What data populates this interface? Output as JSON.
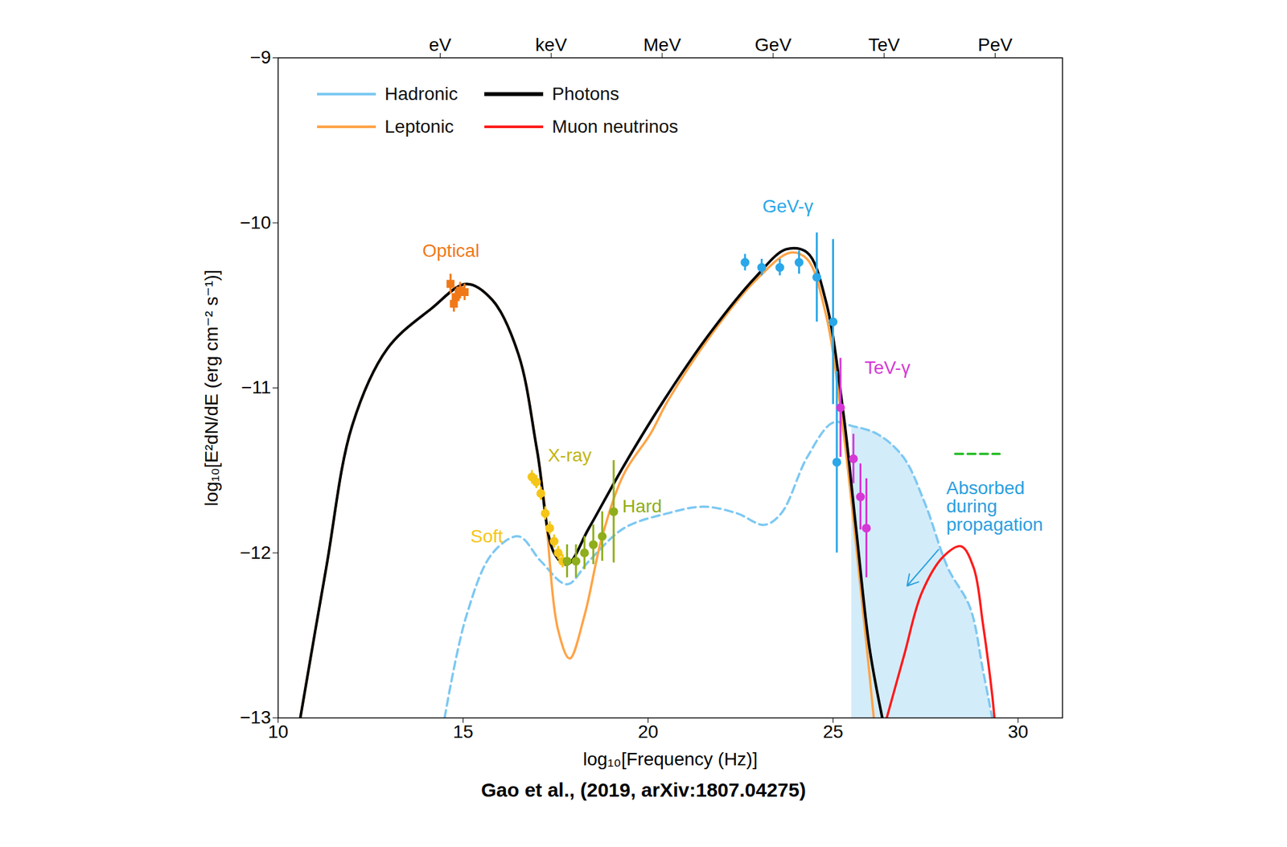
{
  "chart_data": {
    "type": "line",
    "x_label": "log₁₀[Frequency (Hz)]",
    "y_label": "log₁₀[E²dN/dE (erg cm⁻² s⁻¹)]",
    "caption": "Gao et al., (2019, arXiv:1807.04275)",
    "xlim": [
      10,
      31.2
    ],
    "ylim": [
      -13,
      -9
    ],
    "xticks": [
      10,
      15,
      20,
      25,
      30
    ],
    "yticks": [
      -13,
      -12,
      -11,
      -10,
      -9
    ],
    "x2ticks": [
      {
        "value": 14.38,
        "label": "eV"
      },
      {
        "value": 17.38,
        "label": "keV"
      },
      {
        "value": 20.38,
        "label": "MeV"
      },
      {
        "value": 23.38,
        "label": "GeV"
      },
      {
        "value": 26.38,
        "label": "TeV"
      },
      {
        "value": 29.38,
        "label": "PeV"
      }
    ],
    "grid": false,
    "legend": "top-left",
    "series": [
      {
        "name": "Absorbed during propagation",
        "type": "area",
        "color": "#d3ecfa",
        "x": [
          25.5,
          26.2,
          26.9,
          27.5,
          28.1,
          28.7,
          29.05,
          29.3
        ],
        "values": [
          -11.23,
          -11.28,
          -11.42,
          -11.71,
          -12.09,
          -12.33,
          -12.71,
          -13
        ],
        "label_at": [
          28.06,
          -11.72
        ],
        "label_color": "#2aa0e0",
        "arrow": [
          27.85,
          -11.98,
          27.0,
          -12.2
        ]
      },
      {
        "name": "Hadronic",
        "type": "line",
        "color": "#7cc8f2",
        "line_style": "dashed",
        "x": [
          14.5,
          15.09,
          15.8,
          16.5,
          17.1,
          17.81,
          18.4,
          19.35,
          20.53,
          21.5,
          22.4,
          23.14,
          23.6,
          24.3,
          25.0,
          25.5,
          26.2,
          26.9,
          27.5,
          28.1,
          28.7,
          29.05,
          29.3
        ],
        "values": [
          -13,
          -12.38,
          -12.0,
          -11.9,
          -12.05,
          -12.19,
          -12.05,
          -11.85,
          -11.76,
          -11.72,
          -11.76,
          -11.83,
          -11.76,
          -11.42,
          -11.21,
          -11.23,
          -11.28,
          -11.42,
          -11.71,
          -12.09,
          -12.33,
          -12.71,
          -13
        ]
      },
      {
        "name": "Leptonic",
        "type": "line",
        "color": "#ffa345",
        "line_style": "solid",
        "x": [
          10.6,
          11.3,
          12.0,
          12.96,
          14.14,
          15.09,
          15.8,
          16.5,
          17.0,
          17.2,
          17.57,
          17.88,
          18.28,
          18.76,
          19.35,
          20.06,
          20.53,
          21.7,
          22.9,
          23.85,
          24.3,
          24.8,
          25.27,
          25.62,
          25.9,
          26.1
        ],
        "values": [
          -13,
          -12.09,
          -11.23,
          -10.76,
          -10.52,
          -10.37,
          -10.47,
          -10.8,
          -11.38,
          -11.7,
          -12.47,
          -12.64,
          -12.38,
          -11.9,
          -11.52,
          -11.28,
          -11.08,
          -10.68,
          -10.35,
          -10.18,
          -10.22,
          -10.55,
          -11.25,
          -11.95,
          -12.55,
          -13
        ]
      },
      {
        "name": "Photons",
        "type": "line",
        "color": "#000000",
        "line_style": "solid",
        "x": [
          10.6,
          11.3,
          12.0,
          12.96,
          14.14,
          15.09,
          15.8,
          16.5,
          17.0,
          17.46,
          17.81,
          18.4,
          19.35,
          20.53,
          21.7,
          22.9,
          23.73,
          24.3,
          24.8,
          25.27,
          25.62,
          25.98,
          26.33
        ],
        "values": [
          -13,
          -12.09,
          -11.23,
          -10.76,
          -10.52,
          -10.37,
          -10.47,
          -10.8,
          -11.38,
          -12.0,
          -12.07,
          -11.85,
          -11.47,
          -11.04,
          -10.66,
          -10.33,
          -10.16,
          -10.18,
          -10.47,
          -11.14,
          -11.85,
          -12.57,
          -13
        ]
      },
      {
        "name": "Muon neutrinos",
        "type": "line",
        "color": "#ff1a1a",
        "line_style": "solid",
        "x": [
          26.45,
          26.92,
          27.4,
          27.99,
          28.46,
          28.8,
          29.05,
          29.3,
          29.36
        ],
        "values": [
          -13,
          -12.62,
          -12.24,
          -12.02,
          -11.96,
          -12.09,
          -12.43,
          -12.86,
          -13
        ]
      },
      {
        "type": "line",
        "color": "#22bb22",
        "line_style": "dashed",
        "x": [
          28.3,
          29.5
        ],
        "values": [
          -11.4,
          -11.4
        ]
      },
      {
        "name": "Optical",
        "type": "scatter",
        "color": "#f07818",
        "marker": "square",
        "x": [
          14.66,
          14.75,
          14.8,
          14.92,
          15.04
        ],
        "values": [
          -10.37,
          -10.49,
          -10.45,
          -10.41,
          -10.42
        ],
        "errors": [
          0.06,
          0.05,
          0.05,
          0.05,
          0.05
        ],
        "label_at": [
          13.9,
          -10.17
        ]
      },
      {
        "name": "Soft",
        "type": "scatter",
        "color": "#f5c518",
        "marker": "circle",
        "x": [
          16.86,
          16.98,
          17.1,
          17.22,
          17.34,
          17.46,
          17.57,
          17.69
        ],
        "values": [
          -11.54,
          -11.57,
          -11.64,
          -11.76,
          -11.85,
          -11.93,
          -12.0,
          -12.05
        ],
        "errors": [
          0.04,
          0.04,
          0.04,
          0.04,
          0.04,
          0.04,
          0.04,
          0.04
        ],
        "label_at": [
          15.2,
          -11.9
        ]
      },
      {
        "name": "Hard",
        "type": "scatter",
        "color": "#8fae1b",
        "marker": "circle",
        "x": [
          17.81,
          18.05,
          18.28,
          18.52,
          18.76,
          19.07
        ],
        "values": [
          -12.05,
          -12.05,
          -12.0,
          -11.95,
          -11.9,
          -11.75
        ],
        "errors": [
          0.1,
          0.1,
          0.1,
          0.12,
          0.15,
          0.31
        ],
        "label_at": [
          19.3,
          -11.72
        ]
      },
      {
        "name": "GeV-γ",
        "type": "scatter",
        "color": "#2aa7e8",
        "marker": "circle",
        "x": [
          22.62,
          23.07,
          23.56,
          24.08,
          24.56,
          25.0,
          25.1
        ],
        "values": [
          -10.24,
          -10.27,
          -10.27,
          -10.24,
          -10.33,
          -10.6,
          -11.45
        ],
        "errors": [
          0.05,
          0.05,
          0.05,
          0.07,
          0.27,
          0.5,
          0.55
        ],
        "label_at": [
          23.09,
          -9.9
        ]
      },
      {
        "name": "TeV-γ",
        "type": "scatter",
        "color": "#d638d6",
        "marker": "circle",
        "x": [
          25.2,
          25.55,
          25.74,
          25.9
        ],
        "values": [
          -11.12,
          -11.43,
          -11.66,
          -11.85
        ],
        "errors": [
          0.3,
          0.15,
          0.2,
          0.3
        ],
        "label_at": [
          25.85,
          -10.88
        ]
      }
    ],
    "annotations": [
      {
        "text": "X-ray",
        "x": 17.29,
        "y": -11.41,
        "color": "#c2b510"
      }
    ]
  }
}
